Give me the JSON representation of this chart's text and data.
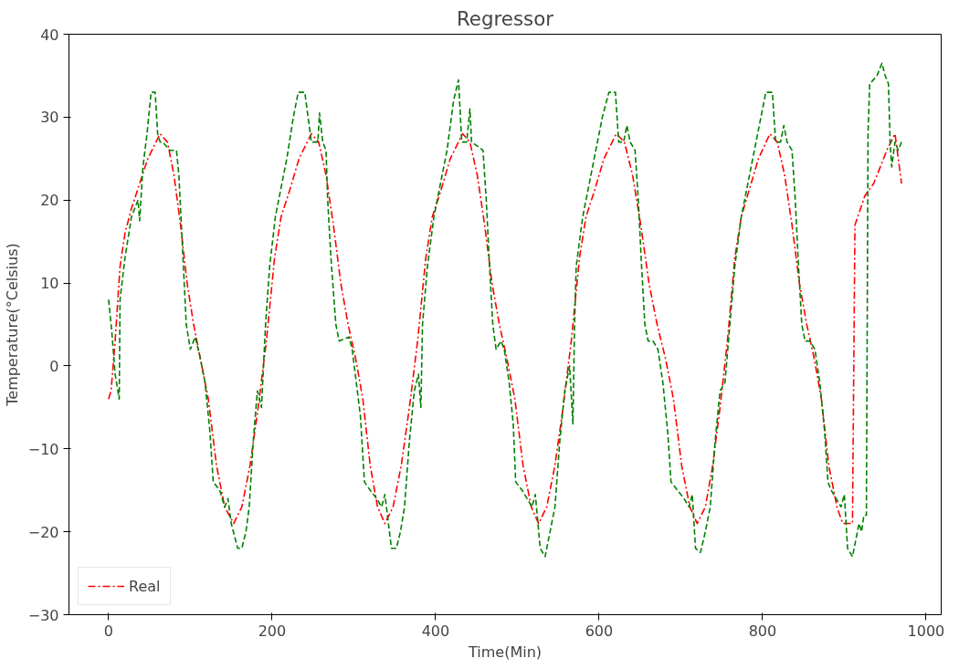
{
  "chart_data": {
    "type": "line",
    "title": "Regressor",
    "xlabel": "Time(Min)",
    "ylabel": "Temperature(°Celsius)",
    "xlim": [
      -48.5,
      1018.5
    ],
    "ylim": [
      -30,
      40
    ],
    "xticks": [
      0,
      200,
      400,
      600,
      800,
      1000
    ],
    "yticks": [
      -30,
      -20,
      -10,
      0,
      10,
      20,
      30,
      40
    ],
    "grid": false,
    "legend": "bottom left",
    "series": [
      {
        "name": "Real",
        "color": "#ff0000",
        "line_style": "dashdot",
        "x": [
          0,
          3,
          8,
          14,
          20,
          28,
          38,
          48,
          63,
          72,
          80,
          88,
          96,
          104,
          112,
          122,
          132,
          142,
          153,
          163,
          173,
          183,
          193,
          203,
          211,
          221,
          233,
          248,
          257,
          266,
          275,
          284,
          293,
          302,
          311,
          320,
          329,
          338,
          348,
          358,
          368,
          378,
          388,
          396,
          406,
          418,
          433,
          442,
          451,
          460,
          469,
          478,
          487,
          497,
          507,
          517,
          526,
          536,
          546,
          556,
          566,
          576,
          584,
          594,
          606,
          621,
          631,
          641,
          651,
          661,
          671,
          681,
          691,
          701,
          711,
          720,
          730,
          739,
          748,
          757,
          766,
          774,
          783,
          795,
          809,
          818,
          827,
          836,
          845,
          854,
          863,
          872,
          881,
          891,
          898,
          905,
          910,
          913,
          920,
          925,
          936,
          944,
          952,
          962,
          970
        ],
        "values": [
          -4,
          -3,
          3,
          12,
          16,
          19,
          22,
          25,
          28,
          27,
          23,
          17,
          10,
          5,
          1,
          -4,
          -12,
          -17,
          -19,
          -17,
          -12,
          -5,
          3,
          13,
          18,
          21,
          25,
          28,
          27,
          23,
          17,
          10,
          5,
          1,
          -4,
          -12,
          -17,
          -19,
          -17,
          -12,
          -5,
          3,
          13,
          18,
          21,
          25,
          28,
          27,
          23,
          17,
          10,
          5,
          1,
          -4,
          -12,
          -17,
          -19,
          -17,
          -12,
          -5,
          3,
          13,
          18,
          21,
          25,
          28,
          27,
          23,
          17,
          10,
          5,
          1,
          -4,
          -12,
          -17,
          -19,
          -17,
          -12,
          -5,
          3,
          13,
          18,
          21,
          25,
          28,
          27,
          23,
          17,
          10,
          5,
          1,
          -4,
          -12,
          -17,
          -19,
          -19,
          -19,
          17,
          19,
          20.5,
          22,
          24,
          26,
          28,
          22
        ]
      },
      {
        "color": "#008000",
        "line_style": "dashed",
        "x": [
          0,
          4,
          8,
          13,
          14,
          20,
          28,
          36,
          38,
          42,
          47,
          52,
          57,
          60,
          63,
          66,
          75,
          83,
          86,
          90,
          95,
          100,
          106,
          112,
          118,
          124,
          128,
          136,
          142,
          146,
          150,
          158,
          163,
          168,
          172,
          177,
          182,
          187,
          192,
          197,
          204,
          210,
          218,
          226,
          232,
          240,
          244,
          248,
          256,
          258,
          262,
          266,
          268,
          272,
          278,
          282,
          294,
          298,
          303,
          308,
          313,
          320,
          328,
          334,
          338,
          346,
          352,
          357,
          362,
          368,
          374,
          379,
          382,
          384,
          390,
          398,
          406,
          414,
          422,
          428,
          432,
          438,
          442,
          444,
          458,
          462,
          466,
          470,
          474,
          480,
          484,
          490,
          495,
          498,
          506,
          512,
          518,
          522,
          528,
          534,
          540,
          546,
          552,
          558,
          564,
          568,
          570,
          572,
          580,
          588,
          596,
          604,
          612,
          620,
          624,
          630,
          634,
          638,
          644,
          648,
          652,
          656,
          660,
          666,
          672,
          678,
          684,
          688,
          696,
          704,
          710,
          714,
          718,
          724,
          730,
          736,
          742,
          748,
          754,
          760,
          766,
          774,
          782,
          790,
          798,
          804,
          812,
          816,
          822,
          826,
          830,
          836,
          840,
          844,
          848,
          852,
          858,
          864,
          870,
          876,
          880,
          884,
          890,
          896,
          900,
          904,
          910,
          914,
          918,
          921,
          924,
          927,
          929,
          931,
          940,
          946,
          950,
          954,
          956,
          958,
          962,
          966,
          970
        ],
        "values": [
          8,
          4,
          -1,
          -4,
          8,
          13,
          18,
          20,
          17.5,
          24,
          28,
          33,
          33,
          28,
          27,
          27,
          26,
          26,
          23,
          15,
          5,
          2,
          3.5,
          1,
          -2,
          -8,
          -14,
          -15,
          -17,
          -16,
          -19,
          -22,
          -22,
          -20,
          -17,
          -9,
          -3,
          -5,
          5,
          12,
          18,
          21,
          25,
          30,
          33,
          33,
          30,
          27,
          27,
          30.5,
          27,
          26,
          20,
          13,
          5,
          3,
          3.5,
          2,
          -2,
          -6,
          -14,
          -15,
          -16,
          -17,
          -15.5,
          -22,
          -22,
          -20,
          -17,
          -9,
          -3,
          -1,
          -5,
          5,
          12,
          18,
          22,
          26,
          32,
          34.5,
          27,
          27,
          31,
          27,
          26,
          20,
          12,
          5,
          2,
          3,
          2,
          -2,
          -7,
          -14,
          -15,
          -16,
          -17,
          -15.5,
          -22,
          -23,
          -20,
          -17,
          -9,
          -3,
          0,
          -7,
          5,
          12,
          18,
          22,
          26,
          30,
          33,
          33,
          27,
          27,
          29,
          27,
          26,
          20,
          12,
          5,
          3,
          3,
          2,
          -2,
          -8,
          -14,
          -15,
          -16,
          -17,
          -15.5,
          -22,
          -22.5,
          -20,
          -17,
          -9,
          -3,
          -2,
          5,
          12,
          18,
          22,
          26,
          30,
          33,
          33,
          27,
          27,
          29,
          27,
          26,
          20,
          12,
          5,
          3,
          3,
          2,
          -2,
          -8,
          -14,
          -15,
          -16,
          -17,
          -15.5,
          -22,
          -23,
          -21,
          -19,
          -20,
          -18,
          -18,
          28,
          34,
          35,
          36.5,
          35,
          34,
          27,
          24,
          27,
          26,
          27
        ]
      }
    ]
  }
}
